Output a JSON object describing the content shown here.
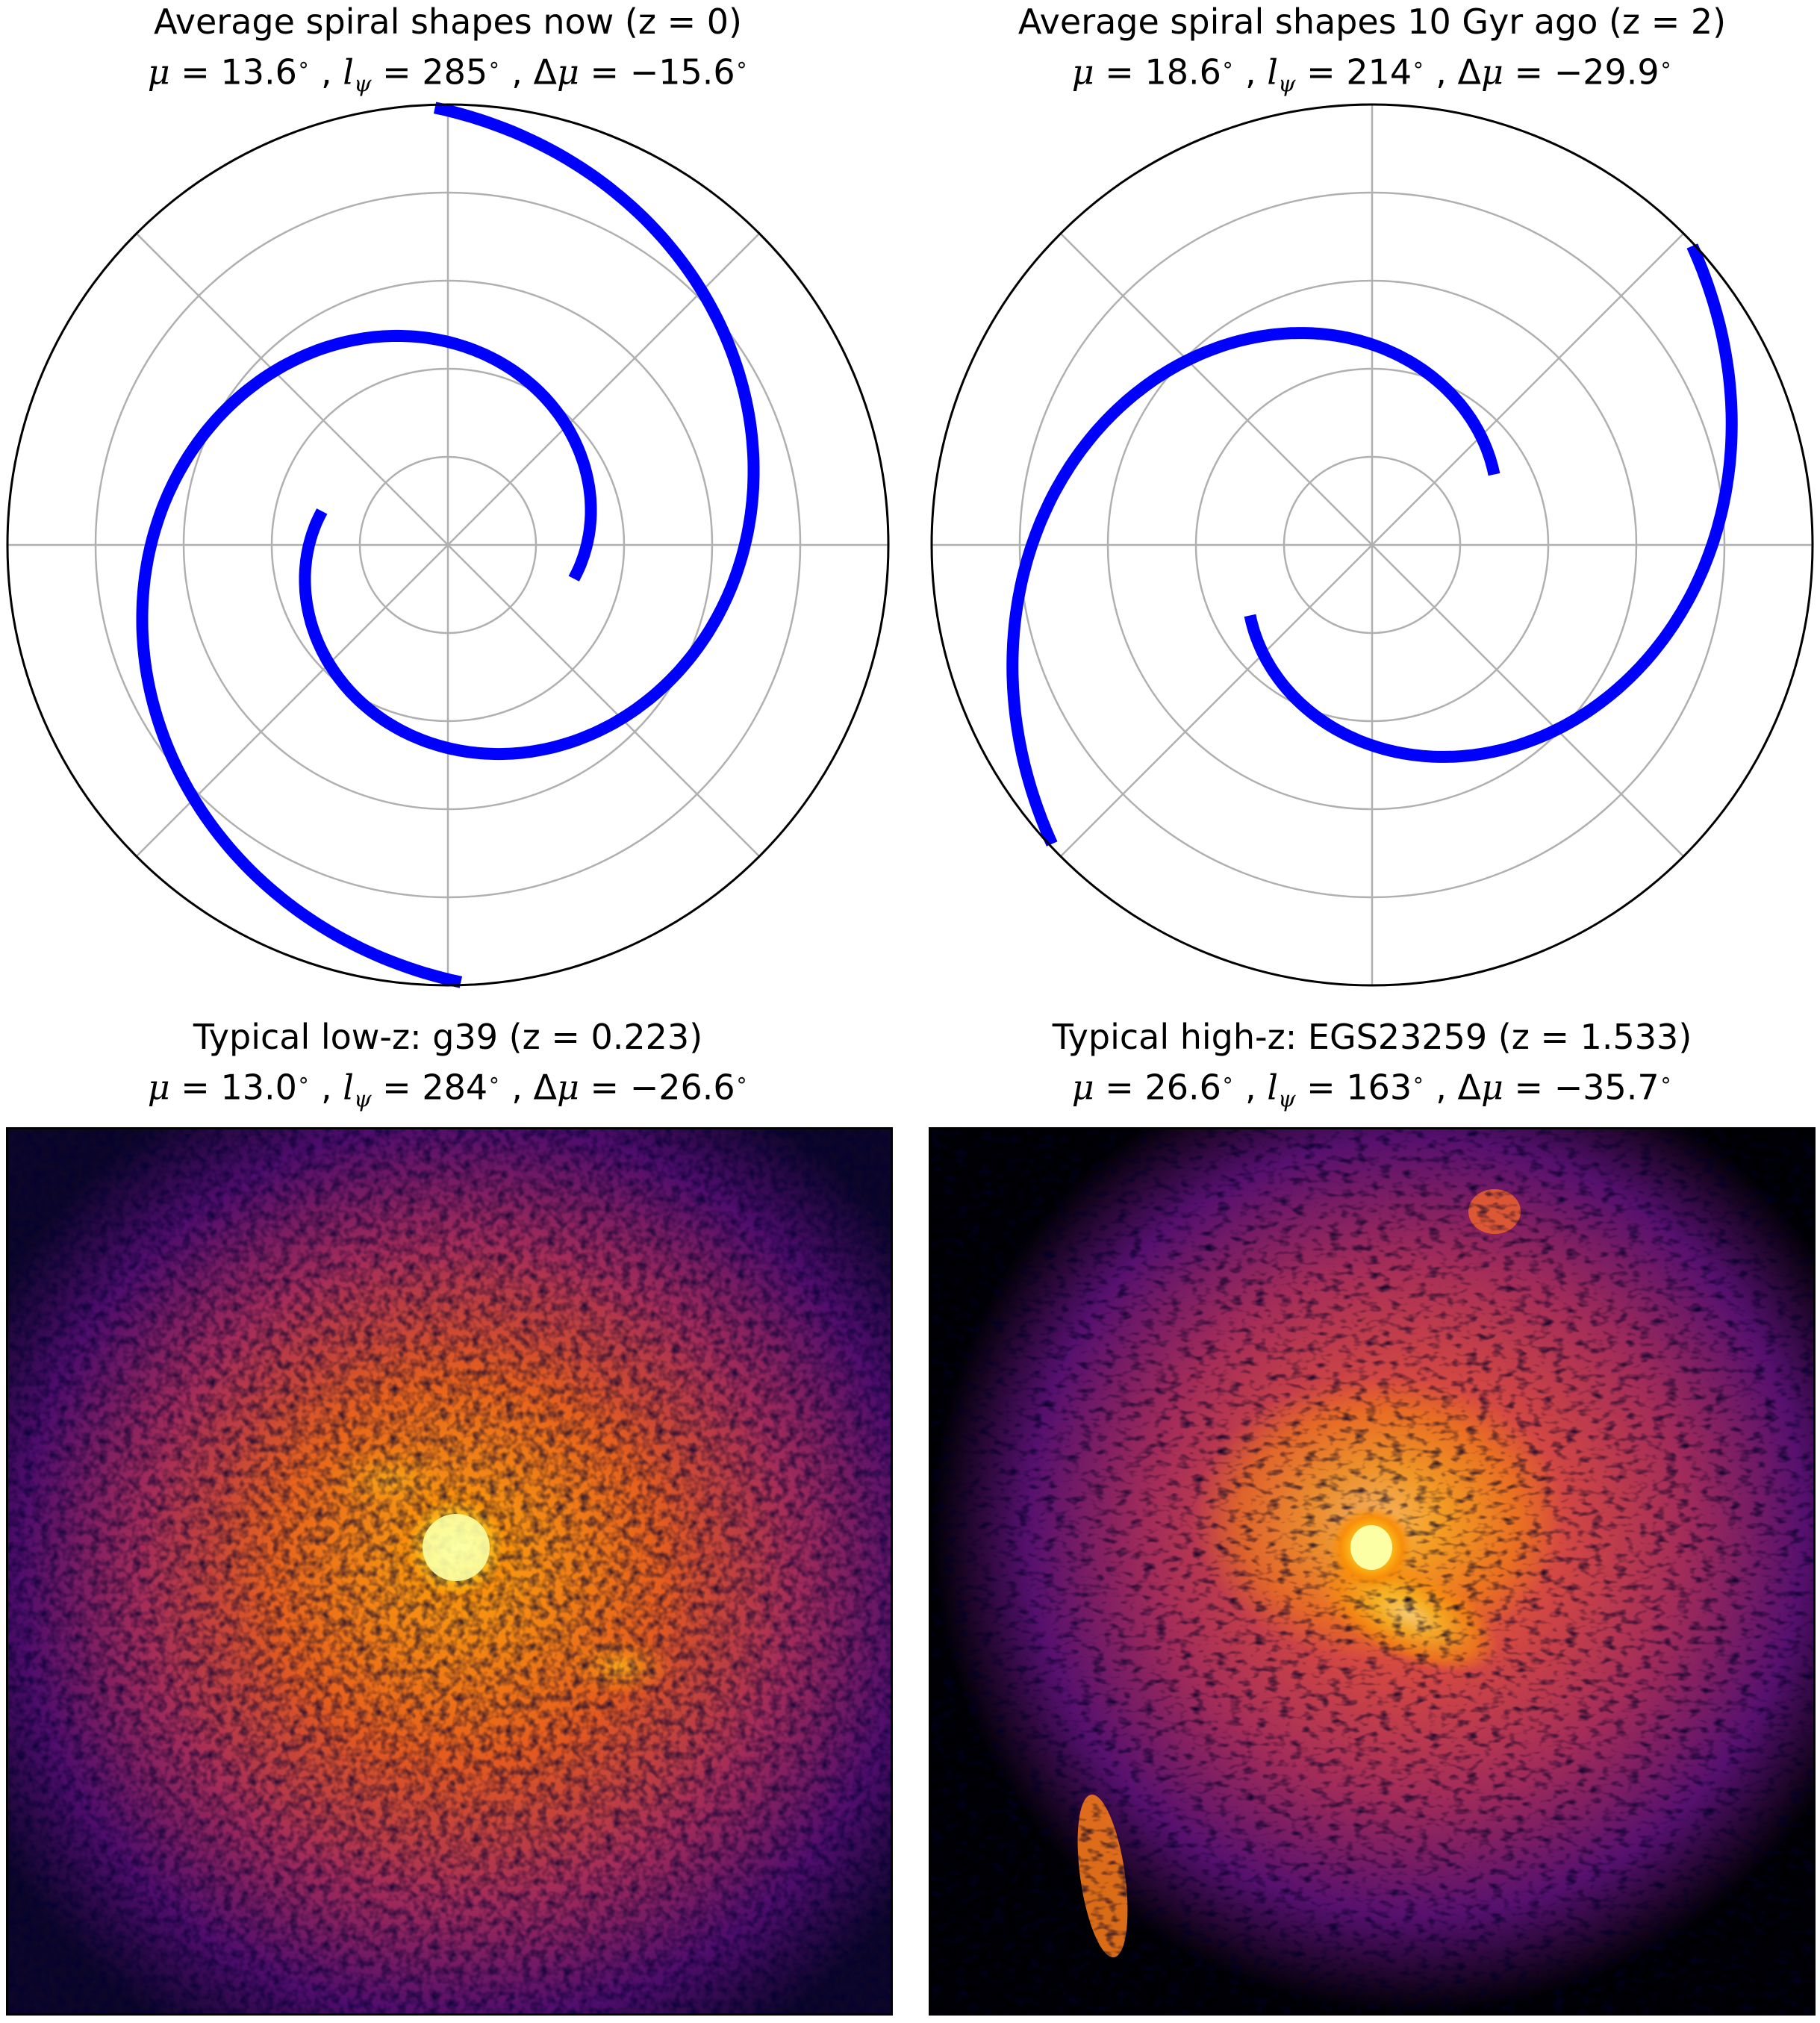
{
  "figure": {
    "panels": [
      {
        "title": "Average spiral shapes now (z = 0)",
        "subtitle": "μ = 13.6 ∘ , lψ = 285 ∘ , Δμ = −15.6 ∘",
        "mu": "13.6",
        "l_psi": "285",
        "delta_mu": "−15.6"
      },
      {
        "title": "Average spiral shapes 10 Gyr ago (z = 2)",
        "subtitle": "μ = 18.6 ∘ , lψ = 214 ∘ , Δμ = −29.9 ∘",
        "mu": "18.6",
        "l_psi": "214",
        "delta_mu": "−29.9"
      },
      {
        "title": "Typical low-z: g39 (z = 0.223)",
        "subtitle": "μ = 13.0 ∘ , lψ = 284 ∘ , Δμ = −26.6 ∘",
        "mu": "13.0",
        "l_psi": "284",
        "delta_mu": "−26.6"
      },
      {
        "title": "Typical high-z: EGS23259 (z = 1.533)",
        "subtitle": "μ = 26.6 ∘ , lψ = 163 ∘ , Δμ = −35.7 ∘",
        "mu": "26.6",
        "l_psi": "163",
        "delta_mu": "−35.7"
      }
    ],
    "colors": {
      "spiral": "#0000ff",
      "grid": "#b0b0b0",
      "colormap": "inferno"
    }
  },
  "chart_data": [
    {
      "type": "line",
      "projection": "polar",
      "grid": true,
      "rlim": [
        0,
        5
      ],
      "r_gridlines": [
        1,
        2,
        3,
        4,
        5
      ],
      "theta_gridlines_deg": [
        0,
        45,
        90,
        135,
        180,
        225,
        270,
        315
      ],
      "pitch_angle_deg": 13.6,
      "n_arms": 2,
      "arm_theta_start_deg": -15,
      "arm_r_start": 1.48,
      "arm_length_deg": 470
    },
    {
      "type": "line",
      "projection": "polar",
      "grid": true,
      "rlim": [
        0,
        5
      ],
      "r_gridlines": [
        1,
        2,
        3,
        4,
        5
      ],
      "theta_gridlines_deg": [
        0,
        45,
        90,
        135,
        180,
        225,
        270,
        315
      ],
      "pitch_angle_deg": 18.6,
      "n_arms": 2,
      "arm_theta_start_deg": 30,
      "arm_r_start": 1.6,
      "arm_length_deg": 330
    },
    {
      "type": "heatmap",
      "colormap": "inferno",
      "object": "g39"
    },
    {
      "type": "heatmap",
      "colormap": "inferno",
      "object": "EGS23259"
    }
  ]
}
